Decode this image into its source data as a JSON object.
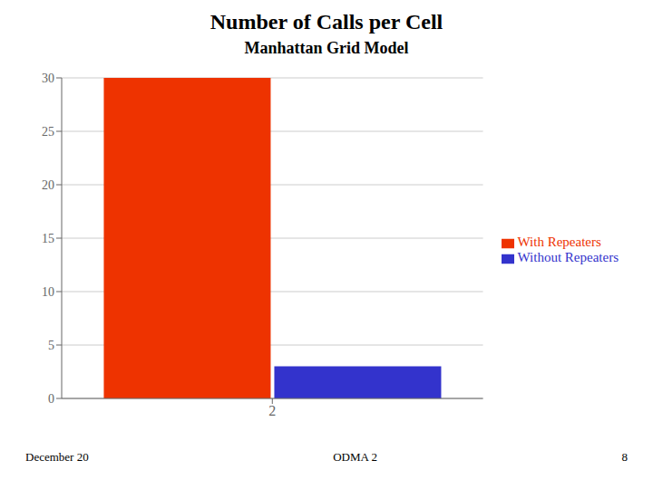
{
  "chart_data": {
    "type": "bar",
    "title": "Number of Calls per Cell",
    "subtitle": "Manhattan Grid Model",
    "categories": [
      "2"
    ],
    "series": [
      {
        "name": "With Repeaters",
        "color": "#ee3300",
        "values": [
          30
        ]
      },
      {
        "name": "Without Repeaters",
        "color": "#3333cc",
        "values": [
          3
        ]
      }
    ],
    "ylim": [
      0,
      30
    ],
    "yticks": [
      0,
      5,
      10,
      15,
      20,
      25,
      30
    ],
    "grid": true,
    "legend": "right",
    "annotations": [
      "December 20",
      "ODMA 2",
      "8"
    ]
  }
}
